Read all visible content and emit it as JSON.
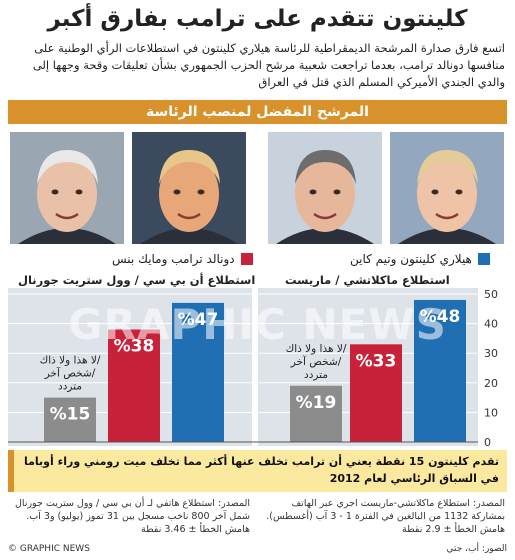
{
  "title": "كلينتون تتقدم على ترامب بفارق أكبر",
  "intro": "اتسع فارق صدارة المرشحة الديمقراطية للرئاسة هيلاري كلينتون في استطلاعات الرأي الوطنية على منافسها دونالد ترامب، بعدما تراجعت شعبية مرشح الحزب الجمهوري بشأن تعليقات وقحة وجهها إلى والدي الجندي الأميركي المسلم الذي قتل في العراق",
  "banner": "المرشح المفضل لمنصب الرئاسة",
  "photos": [
    {
      "name": "mike-pence-photo",
      "skin": "#e9c1a8",
      "hair": "#e8e8e8",
      "bg": "#9aa6b1"
    },
    {
      "name": "donald-trump-photo",
      "skin": "#e8a778",
      "hair": "#e7c68a",
      "bg": "#3b4a5c"
    },
    {
      "name": "tim-kaine-photo",
      "skin": "#e6b79b",
      "hair": "#6d6d6d",
      "bg": "#c7d2dc"
    },
    {
      "name": "hillary-clinton-photo",
      "skin": "#efc3a6",
      "hair": "#e3cc9a",
      "bg": "#93a7bf"
    }
  ],
  "legend": {
    "republican": {
      "label": "دونالد ترامب ومايك بنس",
      "color": "#c8213a"
    },
    "democrat": {
      "label": "هيلاري كلينتون وتيم كاين",
      "color": "#1f6fb2"
    }
  },
  "polls": {
    "left_label": "استطلاع أن بي سي / وول ستريت جورنال",
    "right_label": "استطلاع ماكلاتشي / ماريست"
  },
  "chart_data": [
    {
      "type": "bar",
      "title": "استطلاع أن بي سي / وول ستريت جورنال",
      "categories": [
        "لا هذا ولا ذاك/ شخص آخر/ متردد",
        "دونالد ترامب ومايك بنس",
        "هيلاري كلينتون وتيم كاين"
      ],
      "values": [
        15,
        38,
        47
      ],
      "value_labels": [
        "%15",
        "%38",
        "%47"
      ],
      "ylim": [
        0,
        50
      ],
      "grid": true
    },
    {
      "type": "bar",
      "title": "استطلاع ماكلاتشي / ماريست",
      "categories": [
        "لا هذا ولا ذاك/ شخص آخر/ متردد",
        "دونالد ترامب ومايك بنس",
        "هيلاري كلينتون وتيم كاين"
      ],
      "values": [
        19,
        33,
        48
      ],
      "value_labels": [
        "%19",
        "%33",
        "%48"
      ],
      "ylim": [
        0,
        50
      ],
      "yticks": [
        "0",
        "10",
        "20",
        "30",
        "40",
        "50"
      ],
      "grid": true
    }
  ],
  "other_label_lines": [
    "لا هذا ولا ذاك/",
    "شخص آخر/",
    "متردد"
  ],
  "bar_colors": {
    "other": "#8c8c8c",
    "republican": "#c8213a",
    "democrat": "#1f6fb2",
    "panel": "#dde3e9"
  },
  "note": "تقدم كلينتون 15 نقطة يعني أن ترامب تخلف عنها أكثر مما تخلف ميت رومني وراء أوباما في السباق الرئاسي لعام 2012",
  "source_left": "المصدر: استطلاع هاتفي لـ أن بي سي / وول ستريت جورنال شمل آخر 800 ناخب مسجل بين 31 تموز (يوليو) و3 آب. هامش الخطأ ± 3.46 نقطة",
  "source_right": "المصدر: استطلاع ماكلاتشي-ماريست اجري عبر الهاتف بمشاركة 1132 من البالغين في الفترة 1 - 3 آب (أغسطس). هامش الخطأ ± 2.9 نقطة",
  "footer_left": "© GRAPHIC NEWS",
  "footer_right": "الصور: أب، جتي",
  "watermark": "GRAPHIC NEWS"
}
